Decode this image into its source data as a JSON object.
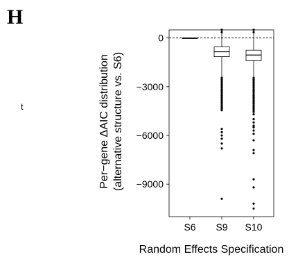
{
  "panel": {
    "letter": "H",
    "stray_char": "t"
  },
  "chart_data": {
    "type": "box",
    "title": "",
    "xlabel": "Random Effects Specification",
    "ylabel_lines": [
      "Per−gene ΔAIC distribution",
      "(alternative structure vs. S6)"
    ],
    "categories": [
      "S6",
      "S9",
      "S10"
    ],
    "ylim": [
      -11000,
      500
    ],
    "yticks": [
      0,
      -3000,
      -6000,
      -9000
    ],
    "ytick_labels": [
      "0",
      "−3000",
      "−6000",
      "−9000"
    ],
    "reference_line": {
      "y": 0,
      "style": "dashed"
    },
    "boxes": [
      {
        "category": "S6",
        "min": -40,
        "q1": -20,
        "median": -10,
        "q3": 0,
        "max": 10,
        "outliers": []
      },
      {
        "category": "S9",
        "min": -2400,
        "q1": -1150,
        "median": -850,
        "q3": -550,
        "max": 450,
        "outliers": [
          -2450,
          -2550,
          -2650,
          -2750,
          -2850,
          -2950,
          -3050,
          -3150,
          -3250,
          -3350,
          -3450,
          -3550,
          -3650,
          -3750,
          -3850,
          -3950,
          -4050,
          -4150,
          -4250,
          -4350,
          -4450,
          -5600,
          -5800,
          -6000,
          -6200,
          -6500,
          -6800,
          -9900
        ]
      },
      {
        "category": "S10",
        "min": -2400,
        "q1": -1400,
        "median": -1050,
        "q3": -750,
        "max": 450,
        "outliers": [
          -2450,
          -2550,
          -2650,
          -2750,
          -2850,
          -2950,
          -3050,
          -3150,
          -3250,
          -3350,
          -3450,
          -3550,
          -3650,
          -3750,
          -3850,
          -3950,
          -4050,
          -4150,
          -4250,
          -4350,
          -4450,
          -4550,
          -4700,
          -5000,
          -5200,
          -5400,
          -5500,
          -5700,
          -5900,
          -6300,
          -6900,
          -7100,
          -8700,
          -9200,
          -10200,
          -10500
        ]
      }
    ],
    "grid": false,
    "legend": "none"
  }
}
